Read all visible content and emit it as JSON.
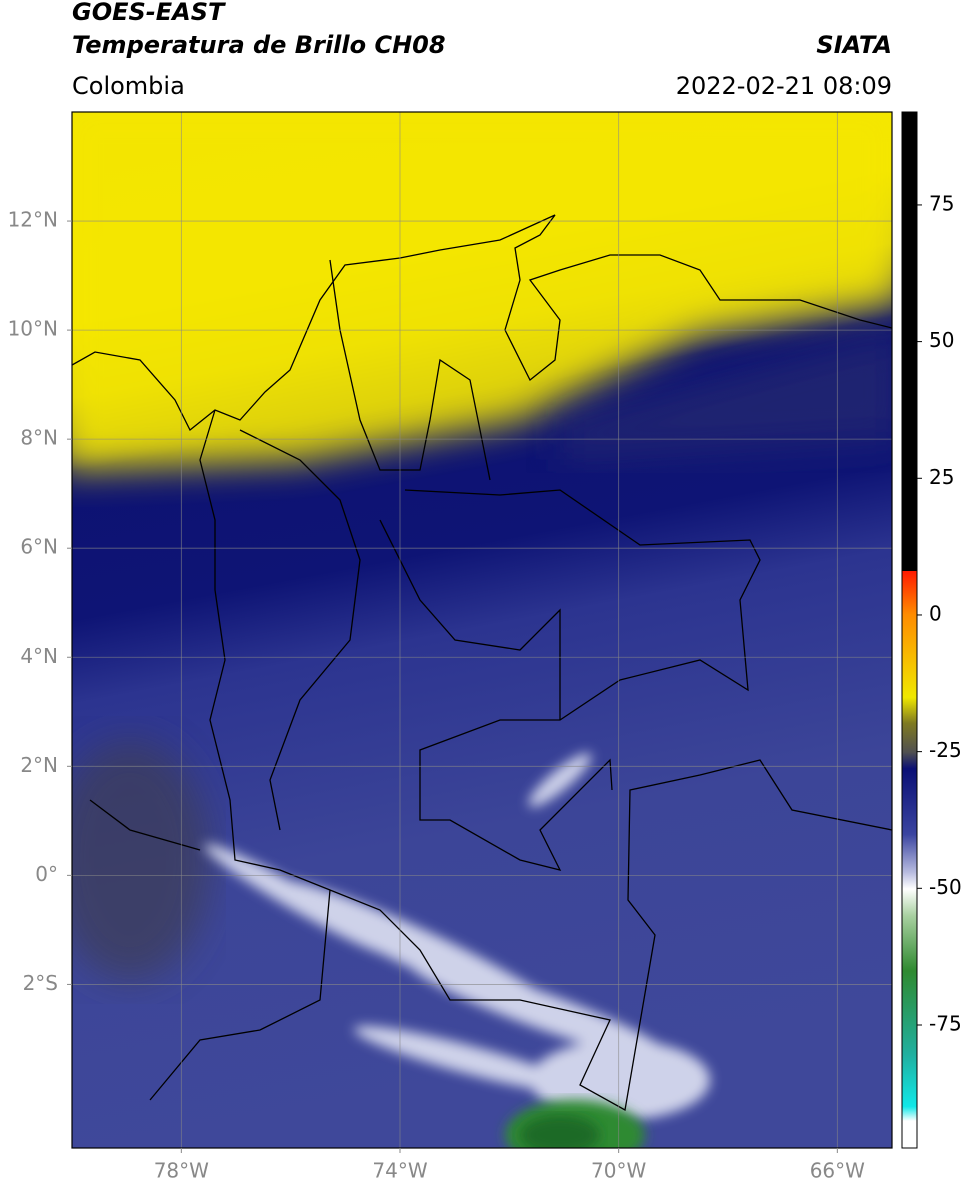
{
  "header": {
    "satellite": "GOES-EAST",
    "product": "Temperatura de Brillo CH08",
    "region": "Colombia",
    "source": "SIATA",
    "datetime": "2022-02-21 08:09"
  },
  "map": {
    "lonlim": [
      -80,
      -65
    ],
    "latlim": [
      -5,
      14
    ],
    "lon_ticks": [
      {
        "value": -78,
        "label": "78°W"
      },
      {
        "value": -74,
        "label": "74°W"
      },
      {
        "value": -70,
        "label": "70°W"
      },
      {
        "value": -66,
        "label": "66°W"
      }
    ],
    "lat_ticks": [
      {
        "value": 12,
        "label": "12°N"
      },
      {
        "value": 10,
        "label": "10°N"
      },
      {
        "value": 8,
        "label": "8°N"
      },
      {
        "value": 6,
        "label": "6°N"
      },
      {
        "value": 4,
        "label": "4°N"
      },
      {
        "value": 2,
        "label": "2°N"
      },
      {
        "value": 0,
        "label": "0°"
      },
      {
        "value": -2,
        "label": "2°S"
      }
    ],
    "grid": true
  },
  "colorbar": {
    "lim": [
      -97.5,
      92
    ],
    "ticks": [
      75,
      50,
      25,
      0,
      -25,
      -50,
      -75
    ]
  }
}
